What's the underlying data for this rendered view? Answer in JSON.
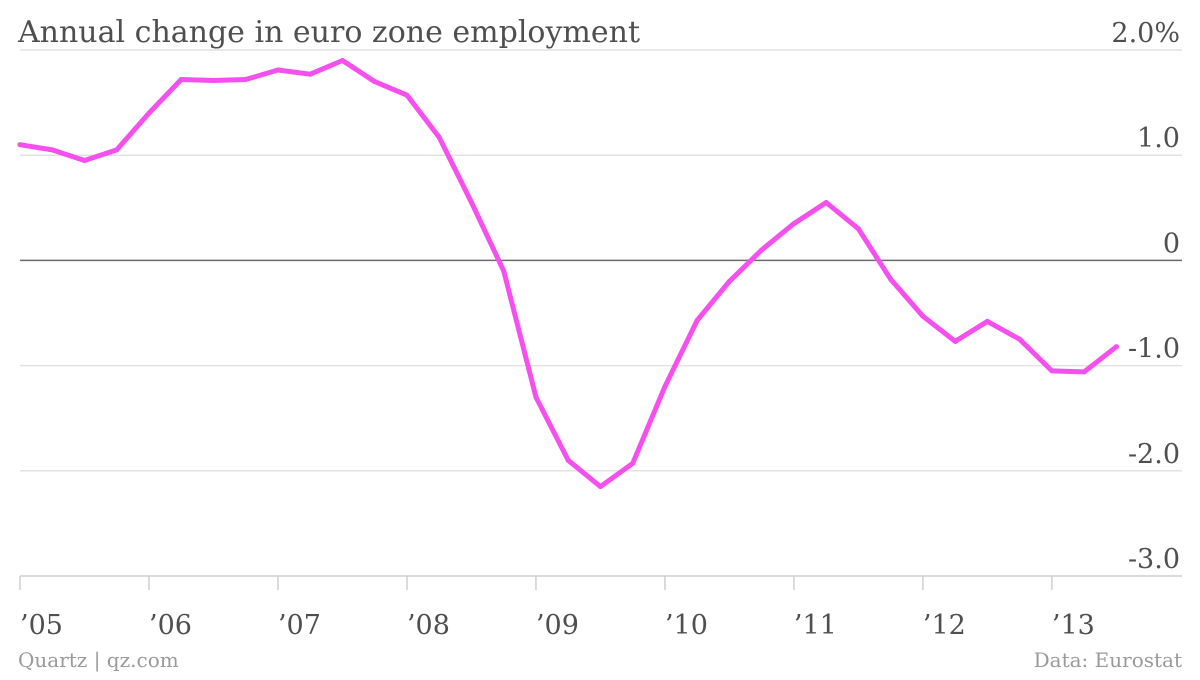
{
  "chart_data": {
    "type": "line",
    "title": "Annual change in euro zone employment",
    "y_unit_suffix": "%",
    "ylim": [
      -3.0,
      2.0
    ],
    "y_ticks": [
      2.0,
      1.0,
      0,
      -1.0,
      -2.0,
      -3.0
    ],
    "y_tick_labels": [
      "2.0%",
      "1.0",
      "0",
      "-1.0",
      "-2.0",
      "-3.0"
    ],
    "x_ticks": [
      2005,
      2006,
      2007,
      2008,
      2009,
      2010,
      2011,
      2012,
      2013
    ],
    "x_tick_labels": [
      "’05",
      "’06",
      "’07",
      "’08",
      "’09",
      "’10",
      "’11",
      "’12",
      "’13"
    ],
    "xlim": [
      2005.0,
      2013.9
    ],
    "grid": true,
    "line_color": "#f550ee",
    "series": [
      {
        "x": [
          2005.0,
          2005.25,
          2005.5,
          2005.75,
          2006.0,
          2006.25,
          2006.5,
          2006.75,
          2007.0,
          2007.25,
          2007.5,
          2007.75,
          2008.0,
          2008.25,
          2008.5,
          2008.75,
          2009.0,
          2009.25,
          2009.5,
          2009.75,
          2010.0,
          2010.25,
          2010.5,
          2010.75,
          2011.0,
          2011.25,
          2011.5,
          2011.75,
          2012.0,
          2012.25,
          2012.5,
          2012.75,
          2013.0,
          2013.25,
          2013.5
        ],
        "values": [
          1.1,
          1.05,
          0.95,
          1.05,
          1.4,
          1.72,
          1.71,
          1.72,
          1.81,
          1.77,
          1.9,
          1.7,
          1.57,
          1.17,
          0.55,
          -0.1,
          -1.3,
          -1.9,
          -2.15,
          -1.93,
          -1.2,
          -0.57,
          -0.2,
          0.1,
          0.35,
          0.55,
          0.3,
          -0.18,
          -0.53,
          -0.77,
          -0.58,
          -0.75,
          -1.05,
          -1.06,
          -0.82
        ]
      }
    ]
  },
  "footer": {
    "source_left": "Quartz | qz.com",
    "source_right": "Data: Eurostat"
  }
}
